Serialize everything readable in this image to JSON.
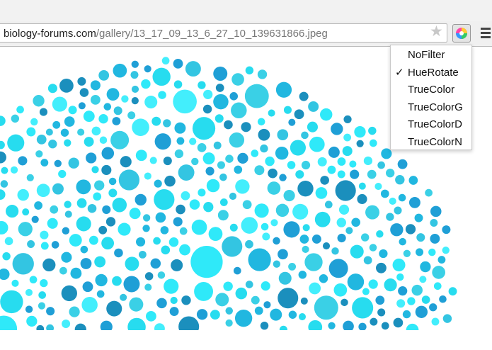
{
  "browser": {
    "url_host": "biology-forums.com",
    "url_path": "/gallery/13_17_09_13_6_27_10_139631866.jpeg"
  },
  "menu": {
    "checkmark": "✓",
    "checked_index": 1,
    "items": [
      "NoFilter",
      "HueRotate",
      "TrueColor",
      "TrueColorG",
      "TrueColorD",
      "TrueColorN"
    ]
  }
}
